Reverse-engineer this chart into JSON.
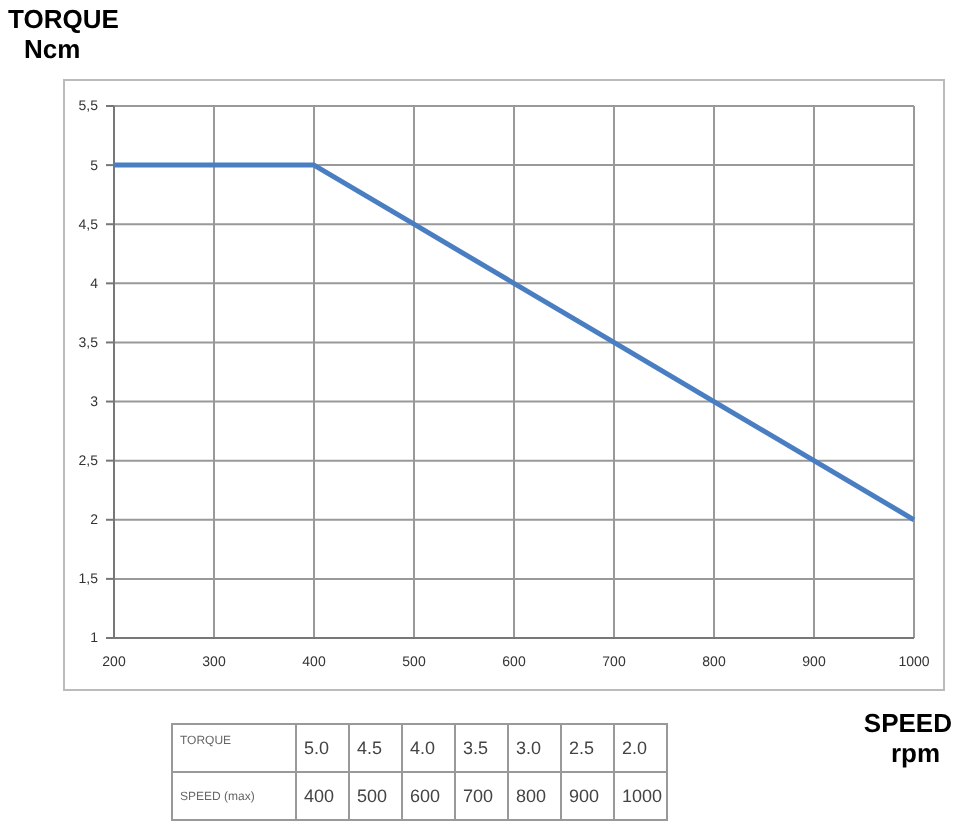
{
  "chart_data": {
    "type": "line",
    "xlabel": "SPEED\nrpm",
    "ylabel": "TORQUE\nNcm",
    "x": [
      200,
      400,
      500,
      600,
      700,
      800,
      900,
      1000
    ],
    "series": [
      {
        "color": "#4a7ec2",
        "values": [
          5,
          5,
          4.5,
          4,
          3.5,
          3,
          2.5,
          2
        ]
      }
    ],
    "xlim": [
      200,
      1000
    ],
    "xticks": [
      200,
      300,
      400,
      500,
      600,
      700,
      800,
      900,
      1000
    ],
    "ylim": [
      1,
      5.5
    ],
    "yticks": [
      1,
      {
        "value": 1.5,
        "label": "1,5"
      },
      2,
      {
        "value": 2.5,
        "label": "2,5"
      },
      3,
      {
        "value": 3.5,
        "label": "3,5"
      },
      4,
      {
        "value": 4.5,
        "label": "4,5"
      },
      5,
      {
        "value": 5.5,
        "label": "5,5"
      }
    ],
    "grid": true,
    "marker": "none",
    "line_style": "solid",
    "annotations": [
      "TORQUE",
      "5.0",
      "4.5",
      "4.0",
      "3.5",
      "3.0",
      "2.5",
      "2.0",
      "SPEED (max)",
      "400",
      "500",
      "600",
      "700",
      "800",
      "900",
      "1000"
    ]
  }
}
